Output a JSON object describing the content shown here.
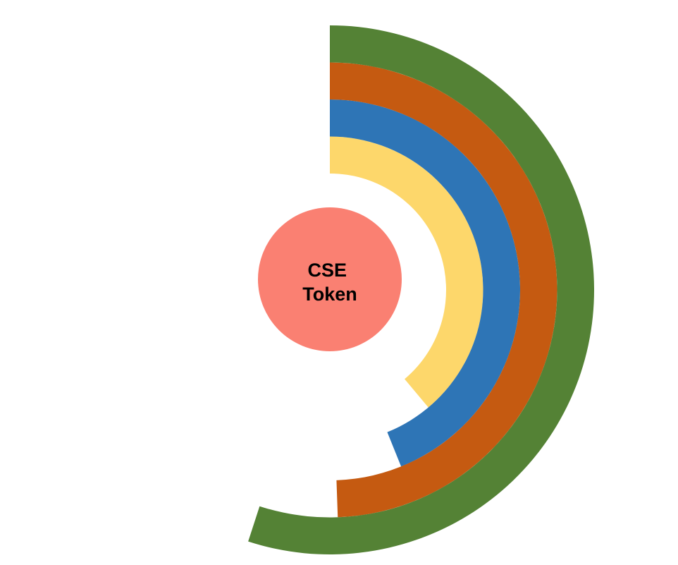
{
  "chart_data": {
    "type": "radial-bar",
    "center": {
      "label_lines": [
        "CSE",
        "Token"
      ],
      "color": "#FA8072"
    },
    "max_value": 360,
    "rings": [
      {
        "value": 140,
        "color": "#FDD76B"
      },
      {
        "value": 158,
        "color": "#2E75B6"
      },
      {
        "value": 178,
        "color": "#C55A11"
      },
      {
        "value": 198,
        "color": "#548235"
      }
    ]
  }
}
